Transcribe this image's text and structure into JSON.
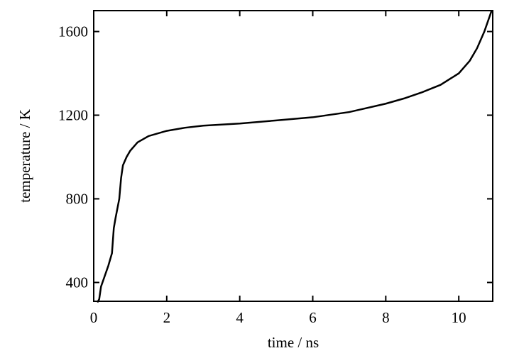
{
  "chart_data": {
    "type": "line",
    "xlabel": "time / ns",
    "ylabel": "temperature / K",
    "x": [
      0.1,
      0.15,
      0.2,
      0.3,
      0.4,
      0.5,
      0.55,
      0.6,
      0.7,
      0.75,
      0.8,
      0.9,
      1.0,
      1.2,
      1.5,
      2,
      2.5,
      3,
      4,
      5,
      6,
      7,
      8,
      8.5,
      9,
      9.5,
      10,
      10.3,
      10.5,
      10.7,
      10.9
    ],
    "series": [
      {
        "color": "#000000",
        "values": [
          305,
          320,
          380,
          430,
          480,
          540,
          660,
          710,
          800,
          900,
          960,
          1000,
          1030,
          1070,
          1100,
          1125,
          1140,
          1150,
          1160,
          1175,
          1190,
          1215,
          1255,
          1280,
          1310,
          1345,
          1400,
          1460,
          1520,
          1600,
          1700
        ]
      }
    ],
    "xlim": [
      0,
      10.93
    ],
    "ylim": [
      310,
      1700
    ],
    "xticks": [
      0,
      2,
      4,
      6,
      8,
      10
    ],
    "yticks": [
      400,
      800,
      1200,
      1600
    ]
  }
}
